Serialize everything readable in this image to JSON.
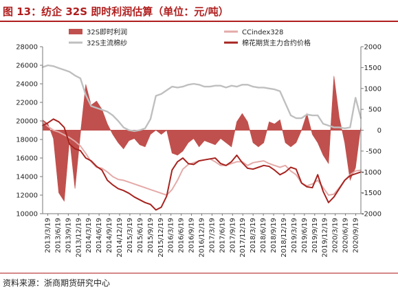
{
  "figure": {
    "title": "图 13：纺企 32S 即时利润估算（单位：元/吨）",
    "source": "资料来源：浙商期货研究中心"
  },
  "chart_data": {
    "type": "line",
    "title": "图 13：纺企 32S 即时利润估算（单位：元/吨）",
    "xlabel": "",
    "ylabel_left": "",
    "ylabel_right": "",
    "ylim_left": [
      10000,
      28000
    ],
    "ylim_right": [
      -2000,
      2000
    ],
    "y_ticks_left": [
      "10000",
      "12000",
      "14000",
      "16000",
      "18000",
      "20000",
      "22000",
      "24000",
      "26000",
      "28000"
    ],
    "y_ticks_right": [
      "-2000",
      "-1500",
      "-1000",
      "-500",
      "0",
      "500",
      "1000",
      "1500",
      "2000"
    ],
    "x_tick_labels": [
      "2013/3/19",
      "2013/6/19",
      "2013/9/19",
      "2013/12/19",
      "2014/3/19",
      "2014/6/19",
      "2014/9/19",
      "2014/12/19",
      "2015/3/19",
      "2015/6/19",
      "2015/9/19",
      "2015/12/19",
      "2016/3/19",
      "2016/6/19",
      "2016/9/19",
      "2016/12/19",
      "2017/3/19",
      "2017/6/19",
      "2017/9/19",
      "2017/12/19",
      "2018/3/19",
      "2018/6/19",
      "2018/9/19",
      "2018/12/19",
      "2019/3/19",
      "2019/6/19",
      "2019/9/19",
      "2019/12/19",
      "2020/3/19",
      "2020/6/19",
      "2020/9/19"
    ],
    "legend_position": "top",
    "series": [
      {
        "name": "32S即时利润",
        "kind": "area",
        "axis": "right",
        "color": "#c0504d",
        "values": [
          250,
          150,
          -200,
          -1500,
          -1700,
          -200,
          -1400,
          -100,
          1100,
          600,
          700,
          500,
          150,
          -100,
          -300,
          -450,
          -250,
          -200,
          -350,
          -400,
          -100,
          0,
          -100,
          0,
          -550,
          -600,
          -500,
          -300,
          -200,
          -400,
          -250,
          -300,
          -350,
          -200,
          -300,
          -400,
          200,
          400,
          200,
          -300,
          -400,
          -300,
          200,
          150,
          250,
          -300,
          -400,
          -300,
          0,
          400,
          -100,
          -300,
          -600,
          -800,
          1300,
          300,
          -300,
          -1200,
          -900,
          100
        ]
      },
      {
        "name": "CCindex328",
        "kind": "line",
        "axis": "left",
        "color": "#e3aaa8",
        "values": [
          19900,
          19400,
          19000,
          18800,
          18500,
          18200,
          17800,
          17300,
          16500,
          15600,
          15000,
          14900,
          14500,
          14000,
          13700,
          13600,
          13400,
          13200,
          13000,
          12800,
          12600,
          12400,
          12200,
          12000,
          12600,
          13600,
          14800,
          15300,
          15500,
          15700,
          15800,
          15900,
          15600,
          15200,
          15200,
          15400,
          15600,
          15600,
          15200,
          15500,
          15600,
          15700,
          15400,
          15200,
          15000,
          15200,
          14600,
          14200,
          13300,
          13000,
          13200,
          13600,
          12800,
          12000,
          12100,
          12800,
          13600,
          14200,
          14600,
          14700
        ]
      },
      {
        "name": "32S主流棉纱",
        "kind": "line",
        "axis": "left",
        "color": "#bfbfbf",
        "values": [
          25800,
          26000,
          25900,
          25700,
          25500,
          25300,
          24900,
          24600,
          22800,
          21600,
          21400,
          21200,
          21000,
          20600,
          20000,
          19300,
          19000,
          18900,
          19000,
          19200,
          20200,
          22700,
          22900,
          23300,
          23700,
          23600,
          23700,
          23900,
          24000,
          23900,
          23700,
          23700,
          23800,
          23800,
          23600,
          23800,
          23700,
          23900,
          23900,
          23700,
          23600,
          23600,
          23500,
          23400,
          23200,
          21900,
          20600,
          20300,
          20300,
          20700,
          20600,
          20600,
          19700,
          19500,
          19300,
          19300,
          19200,
          19300,
          22500,
          20300
        ]
      },
      {
        "name": "棉花期货主力合约价格",
        "kind": "line",
        "axis": "left",
        "color": "#a6231f",
        "values": [
          19500,
          19800,
          20200,
          19900,
          19300,
          17500,
          17000,
          16800,
          16000,
          15700,
          15100,
          14700,
          13600,
          13100,
          12700,
          12500,
          12200,
          11800,
          11500,
          11200,
          11000,
          10400,
          10700,
          11900,
          14700,
          15600,
          16000,
          15400,
          15300,
          15700,
          15800,
          15900,
          16000,
          15400,
          15200,
          15600,
          16300,
          15500,
          14900,
          14800,
          15000,
          15200,
          15100,
          14700,
          14200,
          14500,
          15000,
          14800,
          13300,
          12900,
          12800,
          14200,
          12400,
          11200,
          11800,
          12700,
          13600,
          14100,
          14300,
          14500
        ]
      }
    ]
  }
}
